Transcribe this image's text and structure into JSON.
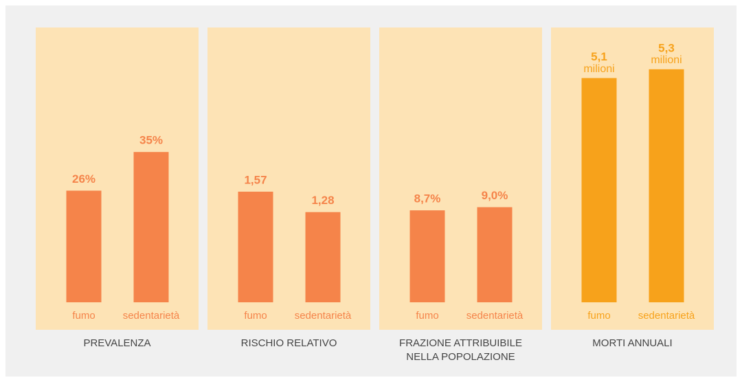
{
  "chart_data": [
    {
      "type": "bar",
      "title": "PREVALENZA",
      "categories": [
        "fumo",
        "sedentarietà"
      ],
      "values": [
        26,
        35
      ],
      "value_labels": [
        "26%",
        "35%"
      ],
      "color": "#f5844a",
      "ylim": [
        0,
        64
      ]
    },
    {
      "type": "bar",
      "title": "RISCHIO RELATIVO",
      "categories": [
        "fumo",
        "sedentarietà"
      ],
      "values": [
        1.57,
        1.28
      ],
      "value_labels": [
        "1,57",
        "1,28"
      ],
      "color": "#f5844a",
      "ylim": [
        0,
        3.9
      ]
    },
    {
      "type": "bar",
      "title": "FRAZIONE ATTRIBUIBILE NELLA POPOLAZIONE",
      "categories": [
        "fumo",
        "sedentarietà"
      ],
      "values": [
        8.7,
        9.0
      ],
      "value_labels": [
        "8,7%",
        "9,0%"
      ],
      "color": "#f5844a",
      "ylim": [
        0,
        26
      ]
    },
    {
      "type": "bar",
      "title": "MORTI ANNUALI",
      "categories": [
        "fumo",
        "sedentarietà"
      ],
      "values": [
        5.1,
        5.3
      ],
      "value_labels": [
        "5,1",
        "5,3"
      ],
      "unit_label": "milioni",
      "color": "#f7a21b",
      "ylim": [
        0,
        6.25
      ]
    }
  ]
}
